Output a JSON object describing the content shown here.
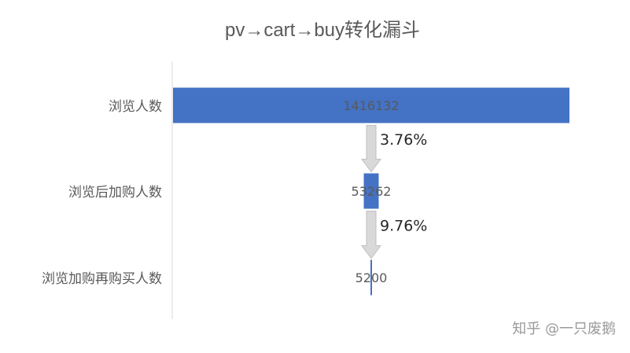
{
  "chart_data": {
    "type": "bar",
    "subtype": "funnel",
    "title": "pv→cart→buy转化漏斗",
    "categories": [
      "浏览人数",
      "浏览后加购人数",
      "浏览加购再购买人数"
    ],
    "values": [
      1416132,
      53262,
      5200
    ],
    "data_labels": [
      "1416132",
      "53262",
      "5200"
    ],
    "conversion_rates": [
      "3.76%",
      "9.76%"
    ],
    "bar_color": "#4472C4",
    "arrow_color": "#D9D9D9",
    "xlabel": "",
    "ylabel": "",
    "grid": false,
    "legend": "none"
  },
  "watermark": "知乎 @一只废鹅"
}
